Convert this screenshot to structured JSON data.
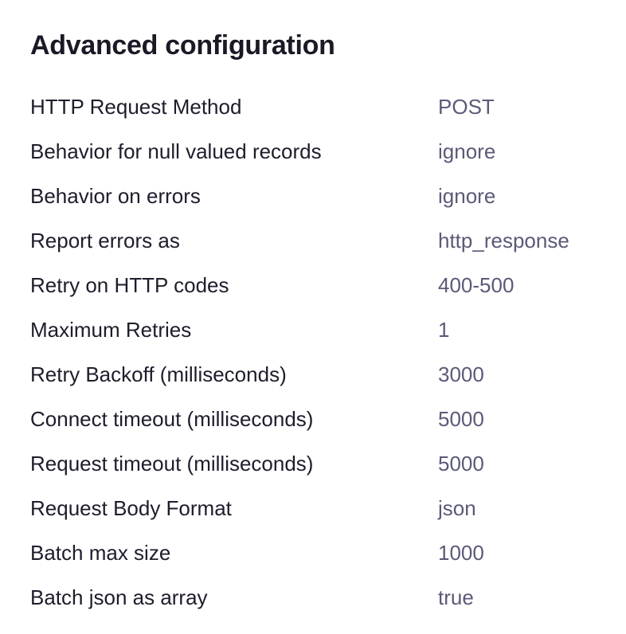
{
  "title": "Advanced configuration",
  "rows": [
    {
      "label": "HTTP Request Method",
      "value": "POST"
    },
    {
      "label": "Behavior for null valued records",
      "value": "ignore"
    },
    {
      "label": "Behavior on errors",
      "value": "ignore"
    },
    {
      "label": "Report errors as",
      "value": "http_response"
    },
    {
      "label": "Retry on HTTP codes",
      "value": "400-500"
    },
    {
      "label": "Maximum Retries",
      "value": "1"
    },
    {
      "label": "Retry Backoff (milliseconds)",
      "value": "3000"
    },
    {
      "label": "Connect timeout (milliseconds)",
      "value": "5000"
    },
    {
      "label": "Request timeout (milliseconds)",
      "value": "5000"
    },
    {
      "label": "Request Body Format",
      "value": "json"
    },
    {
      "label": "Batch max size",
      "value": "1000"
    },
    {
      "label": "Batch json as array",
      "value": "true"
    }
  ]
}
